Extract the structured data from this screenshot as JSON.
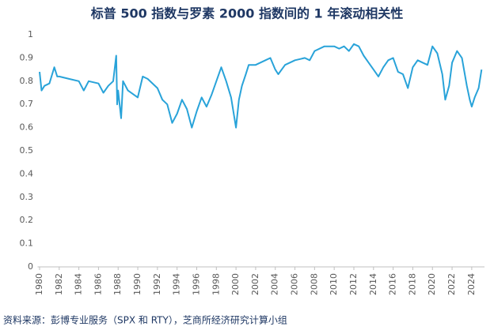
{
  "chart_data": {
    "type": "line",
    "title": "标普 500 指数与罗素 2000 指数间的 1 年滚动相关性",
    "source": "资料来源：彭博专业服务（SPX 和 RTY），芝商所经济研究计算小组",
    "xlim": [
      1979.8,
      2025.3
    ],
    "xticks": [
      1980,
      1982,
      1984,
      1986,
      1988,
      1990,
      1992,
      1994,
      1996,
      1998,
      2000,
      2002,
      2004,
      2006,
      2008,
      2010,
      2012,
      2014,
      2016,
      2018,
      2020,
      2022,
      2024
    ],
    "ylim": [
      0,
      1
    ],
    "yticks": [
      0,
      0.1,
      0.2,
      0.3,
      0.4,
      0.5,
      0.6,
      0.7,
      0.8,
      0.9,
      1
    ],
    "grid": false,
    "series": [
      {
        "name": "1Y rolling correlation",
        "color": "#29a3d9",
        "x": [
          1980,
          1980.2,
          1980.5,
          1981,
          1981.5,
          1981.8,
          1982,
          1983,
          1984,
          1984.5,
          1985,
          1986,
          1986.5,
          1987,
          1987.5,
          1987.8,
          1987.9,
          1988,
          1988.3,
          1988.5,
          1989,
          1990,
          1990.5,
          1991,
          1992,
          1992.5,
          1993,
          1993.5,
          1994,
          1994.5,
          1995,
          1995.5,
          1996,
          1996.5,
          1997,
          1997.5,
          1998,
          1998.5,
          1999,
          1999.5,
          2000,
          2000.3,
          2000.6,
          2001,
          2001.3,
          2002,
          2003,
          2003.5,
          2004,
          2004.3,
          2005,
          2006,
          2007,
          2007.5,
          2008,
          2009,
          2010,
          2010.5,
          2011,
          2011.5,
          2012,
          2012.5,
          2013,
          2013.5,
          2014,
          2014.5,
          2015,
          2015.5,
          2016,
          2016.5,
          2017,
          2017.5,
          2018,
          2018.5,
          2019,
          2019.5,
          2020,
          2020.5,
          2021,
          2021.3,
          2021.7,
          2022,
          2022.5,
          2023,
          2023.5,
          2023.8,
          2024,
          2024.3,
          2024.7,
          2025
        ],
        "values": [
          0.84,
          0.76,
          0.78,
          0.79,
          0.86,
          0.82,
          0.82,
          0.81,
          0.8,
          0.76,
          0.8,
          0.79,
          0.75,
          0.78,
          0.8,
          0.91,
          0.7,
          0.76,
          0.64,
          0.8,
          0.76,
          0.73,
          0.82,
          0.81,
          0.77,
          0.72,
          0.7,
          0.62,
          0.66,
          0.72,
          0.68,
          0.6,
          0.67,
          0.73,
          0.69,
          0.74,
          0.8,
          0.86,
          0.8,
          0.73,
          0.6,
          0.72,
          0.78,
          0.83,
          0.87,
          0.87,
          0.89,
          0.9,
          0.85,
          0.83,
          0.87,
          0.89,
          0.9,
          0.89,
          0.93,
          0.95,
          0.95,
          0.94,
          0.95,
          0.93,
          0.96,
          0.95,
          0.91,
          0.88,
          0.85,
          0.82,
          0.86,
          0.89,
          0.9,
          0.84,
          0.83,
          0.77,
          0.86,
          0.89,
          0.88,
          0.87,
          0.95,
          0.92,
          0.83,
          0.72,
          0.78,
          0.88,
          0.93,
          0.9,
          0.78,
          0.72,
          0.69,
          0.73,
          0.77,
          0.85
        ]
      }
    ]
  }
}
